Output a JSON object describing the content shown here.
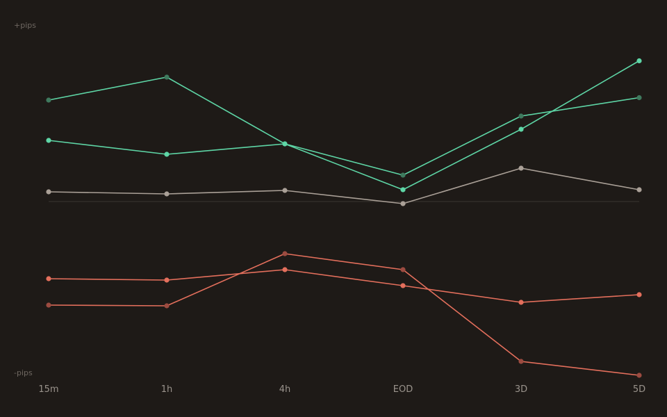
{
  "colors": {
    "background": "#1e1a17",
    "positive": "#5ed6a6",
    "positive_muted": "#3f7a5e",
    "neutral": "#aaa097",
    "negative": "#e46f5c",
    "negative_muted": "#9c4b40",
    "zero_line": "#3b3532",
    "axis_text": "#6e6761",
    "tick_text": "#9a938c"
  },
  "chart_data": {
    "type": "line",
    "title": "",
    "xlabel": "",
    "y_top_label": "+pips",
    "y_bottom_label": "-pips",
    "categories": [
      "15m",
      "1h",
      "4h",
      "EOD",
      "3D",
      "5D"
    ],
    "ylim": [
      -100,
      100
    ],
    "zero_line": 0,
    "grid": false,
    "series": [
      {
        "role": "positive_muted",
        "values": [
          58.4,
          71.6,
          33.2,
          15.2,
          49.2,
          59.8
        ]
      },
      {
        "role": "positive",
        "values": [
          35.2,
          27.2,
          33.2,
          6.8,
          41.6,
          81.0
        ]
      },
      {
        "role": "neutral",
        "values": [
          5.6,
          4.4,
          6.4,
          -1.2,
          19.2,
          6.8
        ]
      },
      {
        "role": "negative",
        "values": [
          -44.4,
          -45.2,
          -39.2,
          -48.4,
          -58.0,
          -53.6
        ]
      },
      {
        "role": "negative_muted",
        "values": [
          -59.6,
          -60.0,
          -30.0,
          -39.2,
          -92.0,
          -100.0
        ]
      }
    ]
  }
}
